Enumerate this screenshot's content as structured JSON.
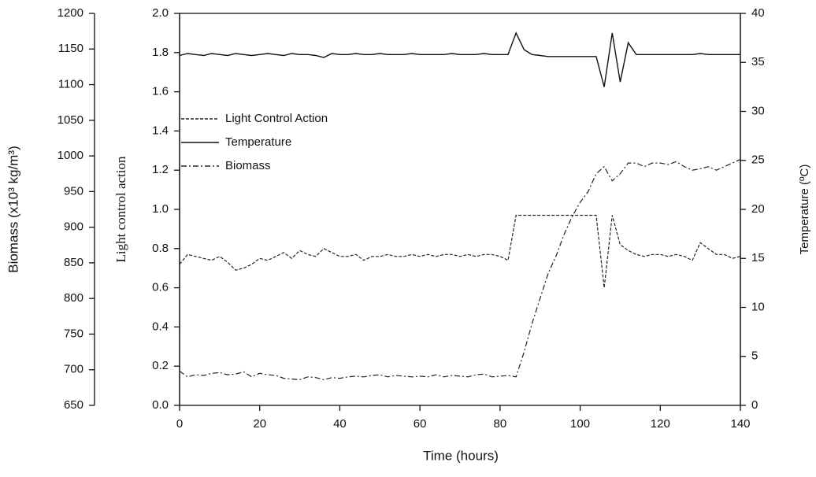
{
  "chart_data": {
    "type": "line",
    "x_label": "Time (hours)",
    "y_label": "Light control action",
    "y2_label": "Temperature (ºC)",
    "y3_label": "Biomass (x10³ kg/m³)",
    "xlim": [
      0,
      140
    ],
    "xticks": [
      0,
      20,
      40,
      60,
      80,
      100,
      120,
      140
    ],
    "ylim": [
      0,
      2
    ],
    "yticks": [
      {
        "value": 0,
        "label": "0.0"
      },
      0.2,
      0.4,
      0.6,
      0.8,
      {
        "value": 1,
        "label": "1.0"
      },
      1.2,
      1.4,
      1.6,
      1.8,
      {
        "value": 2,
        "label": "2.0"
      }
    ],
    "y2lim": [
      0,
      40
    ],
    "y2ticks": [
      0,
      5,
      10,
      15,
      20,
      25,
      30,
      35,
      40
    ],
    "y3lim": [
      650,
      1200
    ],
    "y3ticks": [
      650,
      700,
      750,
      800,
      850,
      900,
      950,
      1000,
      1050,
      1100,
      1150,
      1200
    ],
    "x": [
      0,
      2,
      4,
      6,
      8,
      10,
      12,
      14,
      16,
      18,
      20,
      22,
      24,
      26,
      28,
      30,
      32,
      34,
      36,
      38,
      40,
      42,
      44,
      46,
      48,
      50,
      52,
      54,
      56,
      58,
      60,
      62,
      64,
      66,
      68,
      70,
      72,
      74,
      76,
      78,
      80,
      82,
      84,
      86,
      88,
      90,
      92,
      94,
      96,
      98,
      100,
      102,
      104,
      106,
      108,
      110,
      112,
      114,
      116,
      118,
      120,
      122,
      124,
      126,
      128,
      130,
      132,
      134,
      136,
      138,
      140
    ],
    "series": [
      {
        "name": "Light Control Action",
        "color": "#222222",
        "line_style": "dashed",
        "axis": "y",
        "values": [
          0.72,
          0.77,
          0.76,
          0.75,
          0.74,
          0.76,
          0.73,
          0.69,
          0.7,
          0.72,
          0.75,
          0.74,
          0.76,
          0.78,
          0.75,
          0.79,
          0.77,
          0.76,
          0.8,
          0.78,
          0.76,
          0.76,
          0.77,
          0.74,
          0.76,
          0.76,
          0.77,
          0.76,
          0.76,
          0.77,
          0.76,
          0.77,
          0.76,
          0.77,
          0.77,
          0.76,
          0.77,
          0.76,
          0.77,
          0.77,
          0.76,
          0.74,
          0.97,
          0.97,
          0.97,
          0.97,
          0.97,
          0.97,
          0.97,
          0.97,
          0.97,
          0.97,
          0.97,
          0.6,
          0.97,
          0.82,
          0.79,
          0.77,
          0.76,
          0.77,
          0.77,
          0.76,
          0.77,
          0.76,
          0.74,
          0.83,
          0.8,
          0.77,
          0.77,
          0.75,
          0.76
        ]
      },
      {
        "name": "Temperature",
        "color": "#111111",
        "line_style": "solid",
        "axis": "y2",
        "values": [
          35.7,
          35.9,
          35.8,
          35.7,
          35.9,
          35.8,
          35.7,
          35.9,
          35.8,
          35.7,
          35.8,
          35.9,
          35.8,
          35.7,
          35.9,
          35.8,
          35.8,
          35.7,
          35.5,
          35.9,
          35.8,
          35.8,
          35.9,
          35.8,
          35.8,
          35.9,
          35.8,
          35.8,
          35.8,
          35.9,
          35.8,
          35.8,
          35.8,
          35.8,
          35.9,
          35.8,
          35.8,
          35.8,
          35.9,
          35.8,
          35.8,
          35.8,
          38.0,
          36.3,
          35.8,
          35.7,
          35.6,
          35.6,
          35.6,
          35.6,
          35.6,
          35.6,
          35.6,
          32.5,
          38.0,
          33.0,
          37.0,
          35.8,
          35.8,
          35.8,
          35.8,
          35.8,
          35.8,
          35.8,
          35.8,
          35.9,
          35.8,
          35.8,
          35.8,
          35.8,
          35.8
        ]
      },
      {
        "name": "Biomass",
        "color": "#222222",
        "line_style": "dashdot",
        "axis": "y3",
        "values": [
          698,
          690,
          693,
          692,
          695,
          696,
          693,
          694,
          697,
          690,
          695,
          693,
          692,
          688,
          687,
          686,
          690,
          689,
          686,
          689,
          688,
          690,
          691,
          690,
          692,
          693,
          690,
          692,
          691,
          690,
          691,
          690,
          693,
          690,
          692,
          691,
          690,
          693,
          694,
          690,
          691,
          692,
          690,
          725,
          765,
          800,
          835,
          860,
          890,
          915,
          935,
          950,
          975,
          985,
          965,
          975,
          990,
          990,
          985,
          990,
          990,
          988,
          992,
          985,
          980,
          982,
          985,
          980,
          985,
          990,
          995
        ]
      }
    ]
  }
}
